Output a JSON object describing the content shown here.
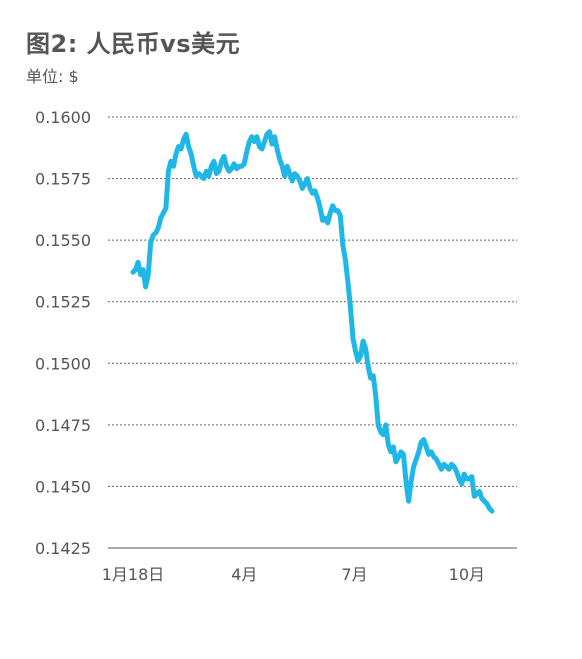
{
  "chart_data": {
    "type": "line",
    "title": "图2: 人民币vs美元",
    "unit_label": "单位: $",
    "xlabel": "",
    "ylabel": "",
    "ylim": [
      0.1425,
      0.16
    ],
    "yticks": [
      "0.1600",
      "0.1575",
      "0.1550",
      "0.1525",
      "0.1500",
      "0.1475",
      "0.1450",
      "0.1425"
    ],
    "ytick_values": [
      0.16,
      0.1575,
      0.155,
      0.1525,
      0.15,
      0.1475,
      0.145,
      0.1425
    ],
    "xticks": [
      "1月18日",
      "4月",
      "7月",
      "10月"
    ],
    "xtick_positions": [
      0,
      0.31,
      0.617,
      0.93
    ],
    "grid": "horizontal dotted",
    "line_color": "#1fb7e6",
    "series": [
      {
        "values": [
          0.1537,
          0.1538,
          0.1541,
          0.1536,
          0.1538,
          0.1531,
          0.1536,
          0.1549,
          0.1552,
          0.1553,
          0.1555,
          0.1559,
          0.1561,
          0.1563,
          0.1578,
          0.1582,
          0.158,
          0.1585,
          0.1588,
          0.1587,
          0.1591,
          0.1593,
          0.1588,
          0.1585,
          0.158,
          0.1576,
          0.1577,
          0.1576,
          0.1575,
          0.1578,
          0.1576,
          0.158,
          0.1582,
          0.1577,
          0.1578,
          0.1582,
          0.1584,
          0.158,
          0.1578,
          0.1579,
          0.1581,
          0.1579,
          0.158,
          0.158,
          0.1581,
          0.1586,
          0.159,
          0.1592,
          0.159,
          0.1592,
          0.1588,
          0.1587,
          0.159,
          0.1593,
          0.1594,
          0.1589,
          0.1592,
          0.1587,
          0.1583,
          0.158,
          0.1576,
          0.158,
          0.1577,
          0.1574,
          0.1577,
          0.1576,
          0.1574,
          0.1571,
          0.1573,
          0.1575,
          0.1571,
          0.1569,
          0.157,
          0.1567,
          0.1563,
          0.1558,
          0.1559,
          0.1557,
          0.1561,
          0.1564,
          0.1562,
          0.1562,
          0.156,
          0.1548,
          0.1542,
          0.1533,
          0.1523,
          0.151,
          0.1505,
          0.1501,
          0.1503,
          0.1509,
          0.1506,
          0.1499,
          0.1494,
          0.1495,
          0.1487,
          0.1475,
          0.1472,
          0.1471,
          0.1475,
          0.1467,
          0.1464,
          0.1466,
          0.146,
          0.1462,
          0.1464,
          0.1463,
          0.1452,
          0.1444,
          0.1452,
          0.1458,
          0.1461,
          0.1464,
          0.1468,
          0.1469,
          0.1466,
          0.1463,
          0.1464,
          0.1462,
          0.1461,
          0.1459,
          0.1457,
          0.1459,
          0.1458,
          0.1457,
          0.1459,
          0.1458,
          0.1456,
          0.1453,
          0.1451,
          0.1455,
          0.1453,
          0.1453,
          0.1454,
          0.1446,
          0.1447,
          0.1448,
          0.1445,
          0.1444,
          0.1443,
          0.1441,
          0.144
        ]
      }
    ]
  }
}
